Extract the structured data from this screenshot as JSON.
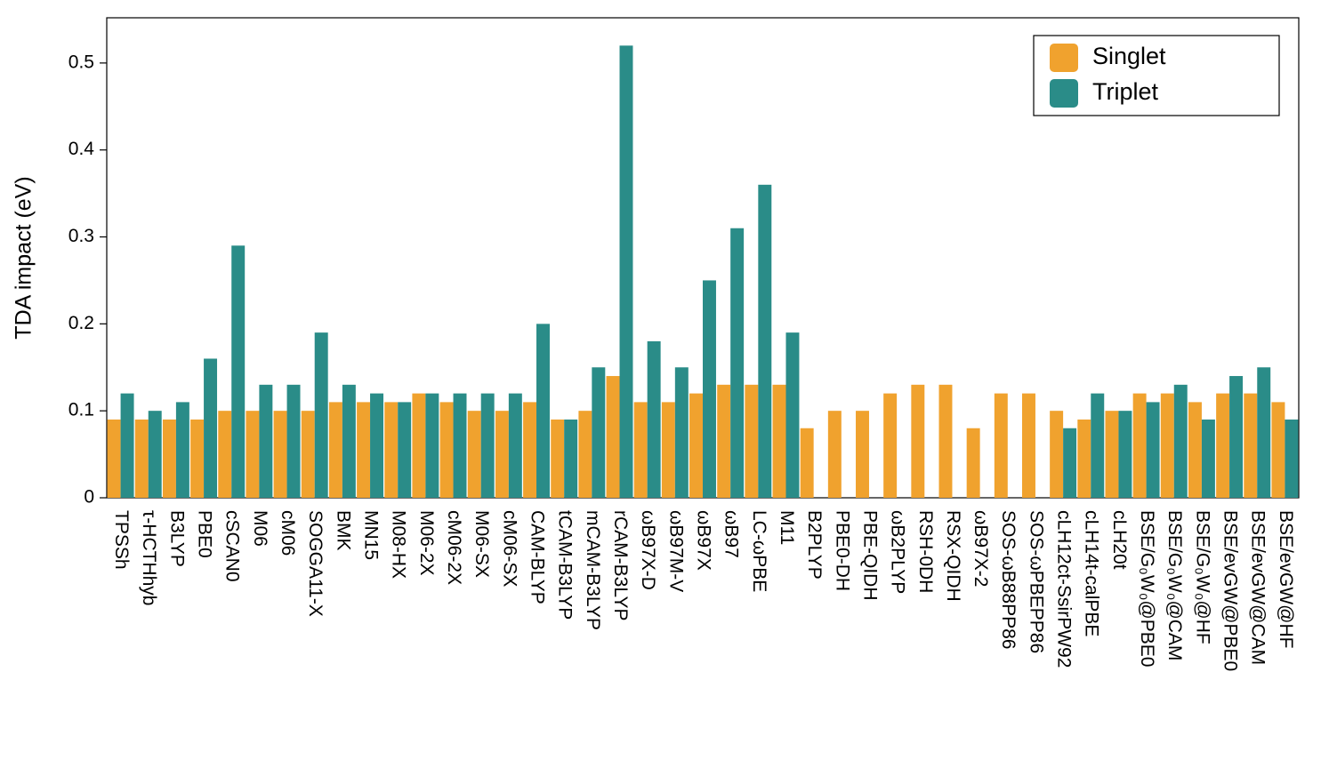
{
  "chart_data": {
    "type": "bar",
    "y_label": "TDA impact (eV)",
    "categories": [
      "TPSSh",
      "τ-HCTHhyb",
      "B3LYP",
      "PBE0",
      "cSCAN0",
      "M06",
      "cM06",
      "SOGGA11-X",
      "BMK",
      "MN15",
      "M08-HX",
      "M06-2X",
      "cM06-2X",
      "M06-SX",
      "cM06-SX",
      "CAM-BLYP",
      "tCAM-B3LYP",
      "mCAM-B3LYP",
      "rCAM-B3LYP",
      "ωB97X-D",
      "ωB97M-V",
      "ωB97X",
      "ωB97",
      "LC-ωPBE",
      "M11",
      "B2PLYP",
      "PBE0-DH",
      "PBE-QIDH",
      "ωB2PLYP",
      "RSH-0DH",
      "RSX-QIDH",
      "ωB97X-2",
      "SOS-ωB88PP86",
      "SOS-ωPBEPP86",
      "cLH12ct-SsirPW92",
      "cLH14t-calPBE",
      "cLH20t",
      "BSE/G₀W₀@PBE0",
      "BSE/G₀W₀@CAM",
      "BSE/G₀W₀@HF",
      "BSE/evGW@PBE0",
      "BSE/evGW@CAM",
      "BSE/evGW@HF"
    ],
    "series": [
      {
        "name": "Singlet",
        "color": "#f0a22e",
        "values": [
          0.09,
          0.09,
          0.09,
          0.09,
          0.1,
          0.1,
          0.1,
          0.1,
          0.11,
          0.11,
          0.11,
          0.12,
          0.11,
          0.1,
          0.1,
          0.11,
          0.09,
          0.1,
          0.14,
          0.11,
          0.11,
          0.12,
          0.13,
          0.13,
          0.13,
          0.08,
          0.1,
          0.1,
          0.12,
          0.13,
          0.13,
          0.08,
          0.12,
          0.12,
          0.1,
          0.09,
          0.1,
          0.12,
          0.12,
          0.11,
          0.12,
          0.12,
          0.11
        ]
      },
      {
        "name": "Triplet",
        "color": "#2a8c88",
        "values": [
          0.12,
          0.1,
          0.11,
          0.16,
          0.29,
          0.13,
          0.13,
          0.19,
          0.13,
          0.12,
          0.11,
          0.12,
          0.12,
          0.12,
          0.12,
          0.2,
          0.09,
          0.15,
          0.52,
          0.18,
          0.15,
          0.25,
          0.31,
          0.36,
          0.19,
          null,
          null,
          null,
          null,
          null,
          null,
          null,
          null,
          null,
          0.08,
          0.12,
          0.1,
          0.11,
          0.13,
          0.09,
          0.14,
          0.15,
          0.09
        ]
      }
    ],
    "ylim": [
      0,
      0.552
    ],
    "yticks": [
      0,
      0.1,
      0.2,
      0.3,
      0.4,
      0.5
    ],
    "legend_position": "upper right"
  }
}
